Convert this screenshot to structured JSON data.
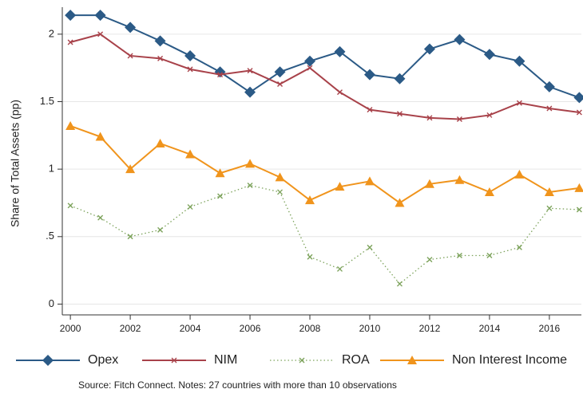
{
  "chart_data": {
    "type": "line",
    "y_label": "Share of Total Assets (pp)",
    "source": "Source: Fitch Connect. Notes: 27  countries with more than 10 observations",
    "x": [
      2000,
      2001,
      2002,
      2003,
      2004,
      2005,
      2006,
      2007,
      2008,
      2009,
      2010,
      2011,
      2012,
      2013,
      2014,
      2015,
      2016,
      2017
    ],
    "xlim": [
      1999.73,
      2017.07
    ],
    "xticks": [
      2000,
      2002,
      2004,
      2006,
      2008,
      2010,
      2012,
      2014,
      2016
    ],
    "ylim": [
      -0.08,
      2.2
    ],
    "yticks": [
      0,
      {
        "value": 0.5,
        "label": ".5"
      },
      1,
      1.5,
      2
    ],
    "grid": true,
    "series": [
      {
        "name": "Opex",
        "color": "#2b5a86",
        "marker": "diamond",
        "dash": "solid",
        "values": [
          2.14,
          2.14,
          2.05,
          1.95,
          1.84,
          1.72,
          1.57,
          1.72,
          1.8,
          1.87,
          1.7,
          1.67,
          1.89,
          1.96,
          1.85,
          1.8,
          1.61,
          1.53
        ]
      },
      {
        "name": "NIM",
        "color": "#a8424a",
        "marker": "x",
        "dash": "solid",
        "values": [
          1.94,
          2.0,
          1.84,
          1.82,
          1.74,
          1.7,
          1.73,
          1.63,
          1.75,
          1.57,
          1.44,
          1.41,
          1.38,
          1.37,
          1.4,
          1.49,
          1.45,
          1.42
        ]
      },
      {
        "name": "ROA",
        "color": "#7da35c",
        "marker": "x",
        "dash": "dotted",
        "values": [
          0.73,
          0.64,
          0.5,
          0.55,
          0.72,
          0.8,
          0.88,
          0.83,
          0.35,
          0.26,
          0.42,
          0.15,
          0.33,
          0.36,
          0.36,
          0.42,
          0.71,
          0.7
        ]
      },
      {
        "name": "Non Interest Income",
        "color": "#f0941c",
        "marker": "triangle",
        "dash": "solid",
        "values": [
          1.32,
          1.24,
          1.0,
          1.19,
          1.11,
          0.97,
          1.04,
          0.94,
          0.77,
          0.87,
          0.91,
          0.75,
          0.89,
          0.92,
          0.83,
          0.96,
          0.83,
          0.86
        ]
      }
    ]
  }
}
